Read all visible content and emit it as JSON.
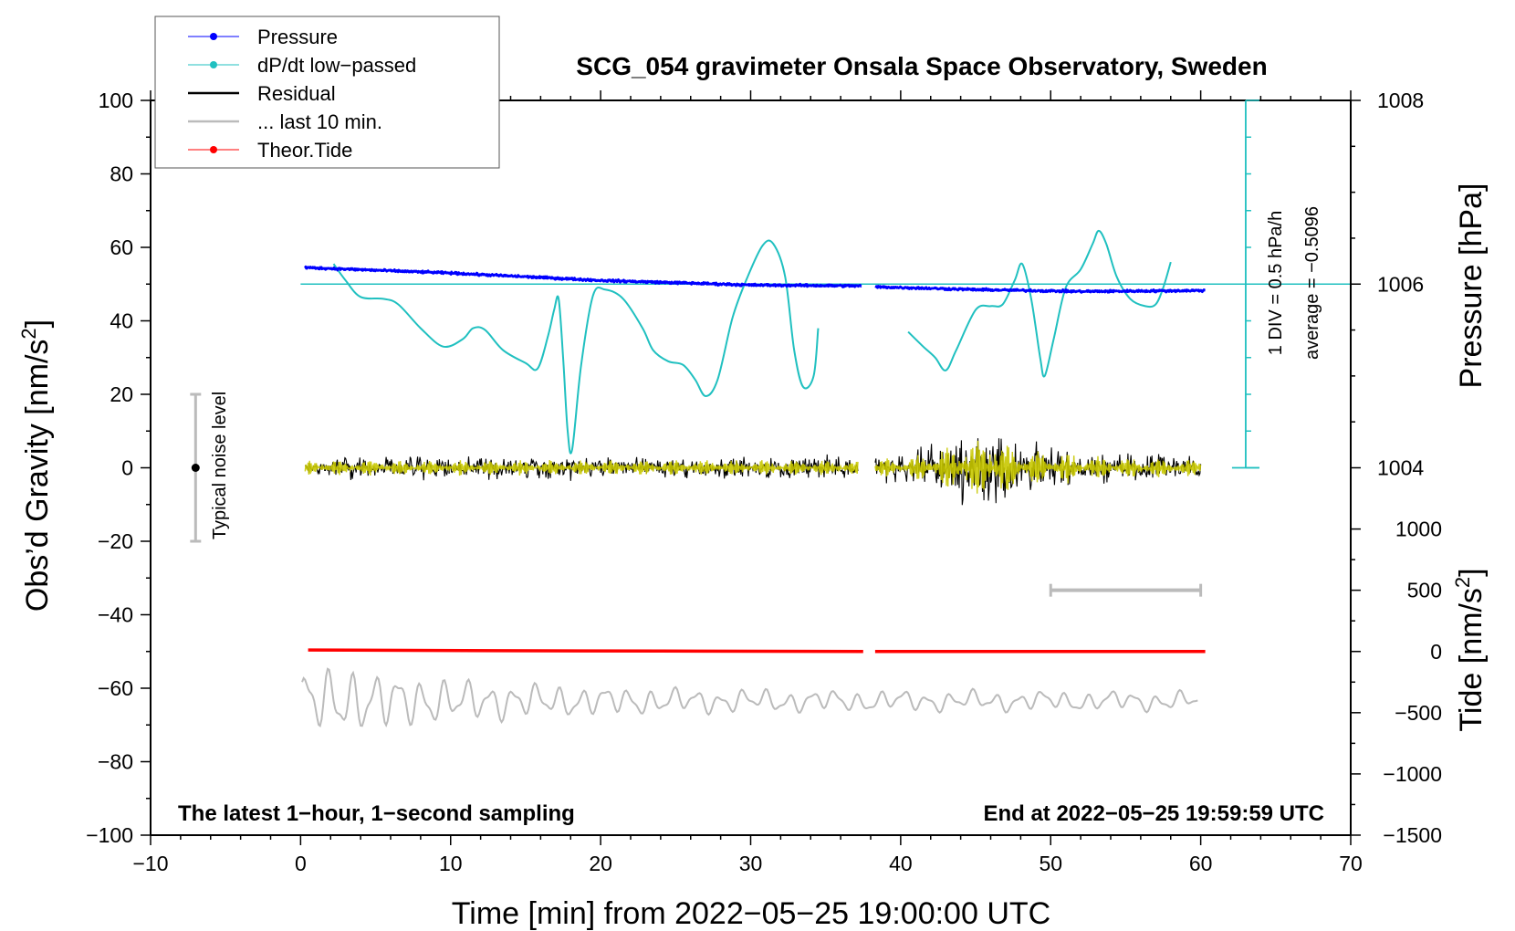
{
  "chart_data": {
    "type": "line",
    "title": "SCG_054 gravimeter Onsala Space Observatory, Sweden",
    "xlabel": "Time [min] from 2022−05−25 19:00:00 UTC",
    "ylabel_left_main": "Obs’d Gravity [nm/s",
    "ylabel_left_sup": "2",
    "ylabel_left_end": "]",
    "ylabel_right_pressure": "Pressure [hPa]",
    "ylabel_right_tide_main": "Tide [nm/s",
    "ylabel_right_tide_sup": "2",
    "ylabel_right_tide_end": "]",
    "xlim": [
      -10,
      70
    ],
    "ylim": [
      -100,
      100
    ],
    "x_ticks": [
      "−10",
      "0",
      "10",
      "20",
      "30",
      "40",
      "50",
      "60",
      "70"
    ],
    "x_tick_values": [
      -10,
      0,
      10,
      20,
      30,
      40,
      50,
      60,
      70
    ],
    "y_ticks": [
      "100",
      "80",
      "60",
      "40",
      "20",
      "0",
      "−20",
      "−40",
      "−60",
      "−80",
      "−100"
    ],
    "y_tick_values": [
      100,
      80,
      60,
      40,
      20,
      0,
      -20,
      -40,
      -60,
      -80,
      -100
    ],
    "pressure_axis": {
      "ticks": [
        "1008",
        "1006",
        "1004"
      ],
      "values": [
        1008,
        1006,
        1004
      ],
      "gravity_at_1006": 50,
      "gravity_per_hpa": 25
    },
    "tide_axis": {
      "ticks": [
        "1000",
        "500",
        "0",
        "−500",
        "−1000",
        "−1500"
      ],
      "values": [
        1000,
        500,
        0,
        -500,
        -1000,
        -1500
      ],
      "gravity_at_0": -50,
      "gravity_per_nms2": 0.03333
    },
    "legend": [
      {
        "label": "Pressure",
        "color": "#0000ff",
        "marker": "dot"
      },
      {
        "label": "dP/dt low−passed",
        "color": "#20c0c0",
        "marker": "dot"
      },
      {
        "label": "Residual",
        "color": "#000000",
        "marker": "line"
      },
      {
        "label": "... last 10 min.",
        "color": "#bbbbbb",
        "marker": "line"
      },
      {
        "label": "Theor.Tide",
        "color": "#ff0000",
        "marker": "dot"
      }
    ],
    "legend_position": "top-left",
    "dpdt_scale_label": "1 DIV = 0.5 hPa/h",
    "dpdt_average_label": "average = −0.5096",
    "noise_label": "Typical noise level",
    "noise_bar": {
      "x": -7,
      "center": 0,
      "range": [
        -20,
        20
      ]
    },
    "footer_left": "The latest 1−hour, 1−second sampling",
    "footer_right": "End at 2022−05−25 19:59:59 UTC",
    "gap": [
      37.5,
      38.3
    ],
    "last10_bracket": {
      "x": [
        50,
        60
      ],
      "tide": 500
    },
    "pressure_hpa_segments": [
      [
        [
          0.3,
          1006.18
        ],
        [
          10,
          1006.12
        ],
        [
          20,
          1006.04
        ],
        [
          30,
          1005.99
        ],
        [
          37.4,
          1005.98
        ]
      ],
      [
        [
          38.3,
          1005.97
        ],
        [
          45,
          1005.94
        ],
        [
          52,
          1005.92
        ],
        [
          60.3,
          1005.93
        ]
      ]
    ],
    "dpdt_gravity_segments": [
      [
        [
          2.2,
          55.5
        ],
        [
          3.0,
          51.0
        ],
        [
          4.0,
          46.5
        ],
        [
          5.5,
          46.0
        ],
        [
          6.5,
          44.5
        ],
        [
          8.0,
          38.0
        ],
        [
          9.5,
          33.0
        ],
        [
          10.8,
          35.0
        ],
        [
          11.5,
          38.0
        ],
        [
          12.3,
          37.5
        ],
        [
          13.5,
          32.0
        ],
        [
          15.0,
          28.5
        ],
        [
          15.8,
          27.0
        ],
        [
          16.5,
          36.0
        ],
        [
          16.9,
          43.0
        ],
        [
          17.2,
          46.0
        ],
        [
          17.5,
          30.0
        ],
        [
          17.8,
          10.0
        ],
        [
          18.1,
          5.0
        ],
        [
          18.7,
          28.0
        ],
        [
          19.5,
          47.0
        ],
        [
          20.3,
          48.5
        ],
        [
          21.5,
          46.0
        ],
        [
          22.8,
          38.0
        ],
        [
          23.5,
          32.0
        ],
        [
          24.5,
          29.0
        ],
        [
          25.5,
          28.0
        ],
        [
          26.3,
          24.0
        ],
        [
          27.0,
          19.5
        ],
        [
          27.8,
          24.0
        ],
        [
          28.8,
          41.0
        ],
        [
          29.8,
          52.0
        ],
        [
          30.8,
          60.5
        ],
        [
          31.5,
          61.0
        ],
        [
          32.3,
          52.0
        ],
        [
          32.9,
          32.0
        ],
        [
          33.5,
          22.0
        ],
        [
          34.2,
          25.0
        ],
        [
          34.5,
          38.0
        ]
      ],
      [
        [
          40.5,
          37.0
        ],
        [
          41.5,
          33.0
        ],
        [
          42.3,
          30.0
        ],
        [
          43.0,
          26.5
        ],
        [
          43.7,
          32.0
        ],
        [
          45.0,
          43.0
        ],
        [
          46.0,
          44.0
        ],
        [
          46.8,
          44.5
        ],
        [
          47.6,
          51.0
        ],
        [
          48.1,
          55.5
        ],
        [
          48.7,
          46.0
        ],
        [
          49.3,
          30.0
        ],
        [
          49.6,
          25.0
        ],
        [
          50.2,
          35.0
        ],
        [
          51.0,
          49.0
        ],
        [
          52.0,
          54.0
        ],
        [
          52.8,
          61.0
        ],
        [
          53.2,
          64.5
        ],
        [
          53.7,
          61.0
        ],
        [
          54.4,
          52.0
        ],
        [
          55.3,
          46.0
        ],
        [
          56.3,
          44.0
        ],
        [
          57.0,
          44.5
        ],
        [
          57.5,
          49.0
        ],
        [
          58.0,
          56.0
        ]
      ]
    ],
    "residual_envelope": [
      [
        [
          0.3,
          3.5
        ],
        [
          37.2,
          3.5
        ]
      ],
      [
        [
          38.3,
          4.5
        ],
        [
          40.5,
          4.5
        ],
        [
          42.5,
          9.0
        ],
        [
          44.0,
          12.0
        ],
        [
          45.2,
          13.0
        ],
        [
          46.2,
          15.0
        ],
        [
          47.2,
          11.0
        ],
        [
          48.5,
          8.0
        ],
        [
          50.5,
          7.0
        ],
        [
          53.0,
          5.0
        ],
        [
          57.0,
          4.5
        ],
        [
          60.0,
          4.0
        ]
      ]
    ],
    "tide_gravity_segments": [
      [
        [
          0.5,
          -49.6
        ],
        [
          13.0,
          -49.8
        ],
        [
          24.0,
          -49.9
        ],
        [
          37.5,
          -50.0
        ]
      ],
      [
        [
          38.3,
          -50.0
        ],
        [
          60.3,
          -50.0
        ]
      ]
    ],
    "long_period_curve": {
      "x_start": 0.1,
      "x_end": 59.9,
      "center": -63.5
    }
  }
}
